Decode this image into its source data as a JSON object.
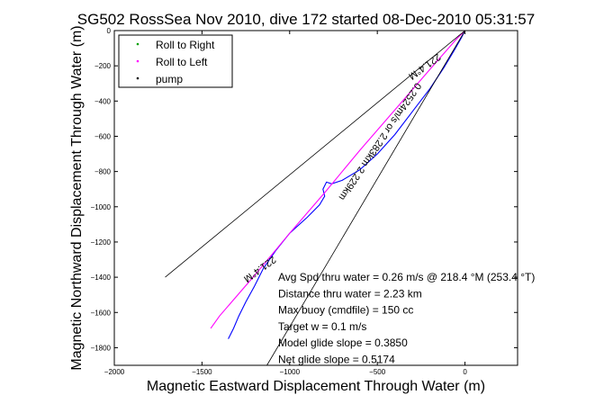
{
  "chart_data": {
    "type": "line",
    "title": "SG502 RossSea Nov 2010, dive 172 started 08-Dec-2010 05:31:57",
    "xlabel": "Magnetic Eastward Displacement Through Water (m)",
    "ylabel": "Magnetic Northward Displacement Through Water (m)",
    "xlim": [
      -2000,
      300
    ],
    "ylim": [
      -1900,
      0
    ],
    "xticks": [
      -2000,
      -1500,
      -1000,
      -500,
      0
    ],
    "yticks": [
      0,
      -200,
      -400,
      -600,
      -800,
      -1000,
      -1200,
      -1400,
      -1600,
      -1800
    ],
    "xtick_labels": [
      "−2000",
      "−1500",
      "−1000",
      "−500",
      "0"
    ],
    "ytick_labels": [
      "0",
      "−200",
      "−400",
      "−600",
      "−800",
      "−1000",
      "−1200",
      "−1400",
      "−1600",
      "−1800"
    ],
    "grid": false,
    "legend_position": "top-left",
    "legend": [
      {
        "label": "Roll to Right",
        "color": "#00a000",
        "marker": "dot"
      },
      {
        "label": "Roll to Left",
        "color": "#ff00ff",
        "marker": "dot"
      },
      {
        "label": "pump",
        "color": "#000000",
        "marker": "dot"
      }
    ],
    "series": [
      {
        "color": "#0000ff",
        "x": [
          0,
          -20,
          -60,
          -120,
          -200,
          -300,
          -400,
          -500,
          -600,
          -700,
          -760,
          -790,
          -810,
          -800,
          -830,
          -900,
          -1000,
          -1080,
          -1150,
          -1200,
          -1250,
          -1290,
          -1320,
          -1350
        ],
        "y": [
          0,
          -40,
          -110,
          -210,
          -330,
          -460,
          -590,
          -700,
          -790,
          -850,
          -870,
          -860,
          -900,
          -940,
          -990,
          -1060,
          -1150,
          -1250,
          -1350,
          -1450,
          -1540,
          -1620,
          -1690,
          -1750
        ]
      },
      {
        "color": "#ff00ff",
        "x": [
          0,
          -50,
          -200,
          -400,
          -600,
          -800,
          -1000,
          -1200,
          -1400,
          -1450
        ],
        "y": [
          0,
          -50,
          -220,
          -450,
          -680,
          -920,
          -1150,
          -1390,
          -1620,
          -1690
        ]
      },
      {
        "color": "#000000",
        "x": [
          0,
          -1710
        ],
        "y": [
          0,
          -1400
        ]
      },
      {
        "color": "#000000",
        "x": [
          0,
          -1130
        ],
        "y": [
          0,
          -1900
        ]
      }
    ],
    "annotations": [
      {
        "text": "221.4°M",
        "x": -240,
        "y": -190,
        "rotate": 144
      },
      {
        "text": "0.2524m/s or 2.283km 2.229km",
        "x": -500,
        "y": -620,
        "rotate": 124
      },
      {
        "text": "221.4°M",
        "x": -1180,
        "y": -1340,
        "rotate": 144
      }
    ],
    "stats": [
      "Avg Spd thru water =  0.26 m/s @ 218.4   °M (253.4 °T)",
      "Distance thru water =  2.23 km",
      "Max buoy (cmdfile) = 150 cc",
      "Target w = 0.1 m/s",
      "Model glide slope = 0.3850",
      "Net glide slope = 0.5174"
    ]
  }
}
